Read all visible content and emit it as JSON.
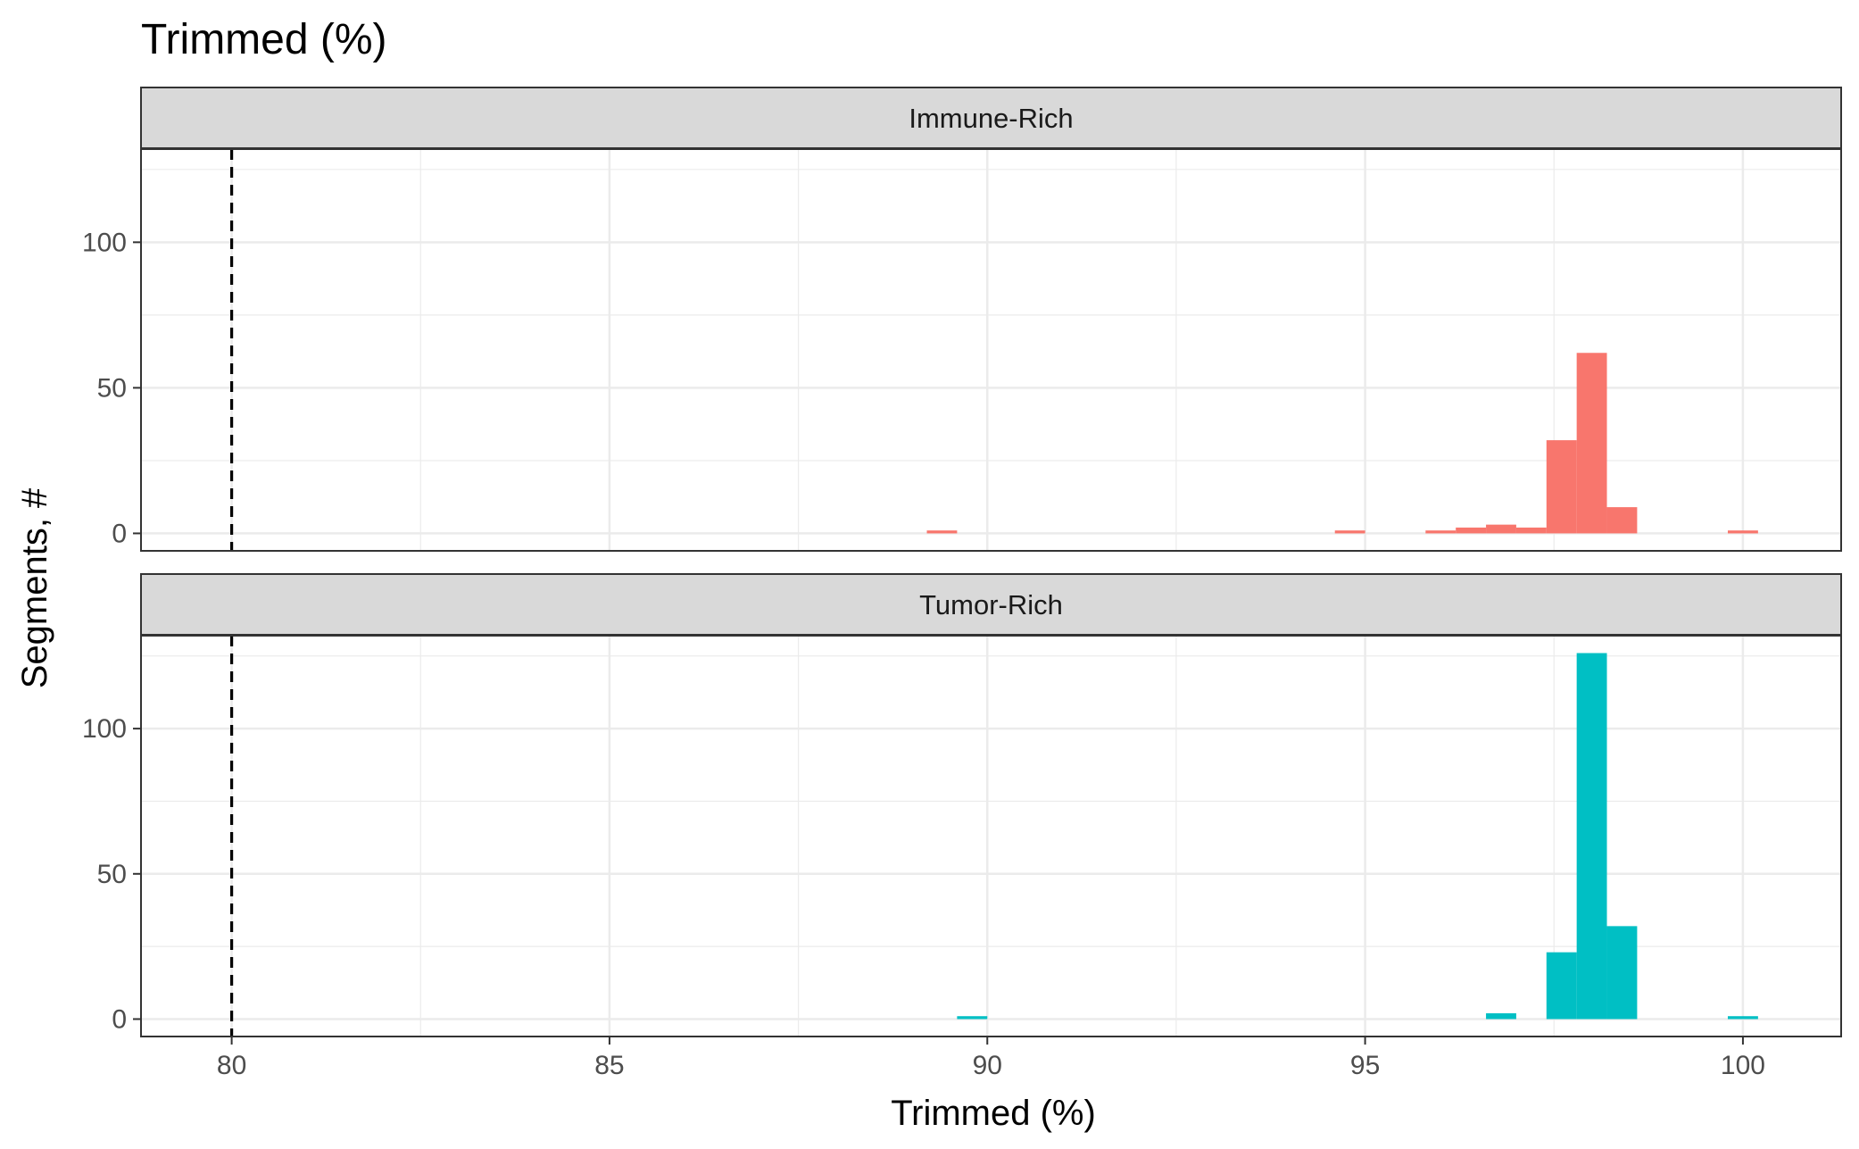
{
  "chart_data": {
    "type": "bar",
    "title": "Trimmed (%)",
    "xlabel": "Trimmed (%)",
    "ylabel": "Segments, #",
    "xlim": [
      78.8,
      101.3
    ],
    "ylim": [
      -6,
      132
    ],
    "x_ticks": [
      "80",
      "85",
      "90",
      "95",
      "100"
    ],
    "y_ticks": [
      "0",
      "50",
      "100"
    ],
    "threshold_x": 80,
    "bin_width": 0.4,
    "grid": true,
    "legend": "none",
    "panels": [
      {
        "label": "Immune-Rich",
        "color": "#F8766D",
        "bins": [
          {
            "x": 89.4,
            "count": 1
          },
          {
            "x": 94.8,
            "count": 1
          },
          {
            "x": 96.0,
            "count": 1
          },
          {
            "x": 96.4,
            "count": 2
          },
          {
            "x": 96.8,
            "count": 3
          },
          {
            "x": 97.2,
            "count": 2
          },
          {
            "x": 97.6,
            "count": 32
          },
          {
            "x": 98.0,
            "count": 62
          },
          {
            "x": 98.4,
            "count": 9
          },
          {
            "x": 100.0,
            "count": 1
          }
        ]
      },
      {
        "label": "Tumor-Rich",
        "color": "#00BFC4",
        "bins": [
          {
            "x": 89.8,
            "count": 1
          },
          {
            "x": 96.8,
            "count": 2
          },
          {
            "x": 97.6,
            "count": 23
          },
          {
            "x": 98.0,
            "count": 126
          },
          {
            "x": 98.4,
            "count": 32
          },
          {
            "x": 100.0,
            "count": 1
          }
        ]
      }
    ]
  }
}
